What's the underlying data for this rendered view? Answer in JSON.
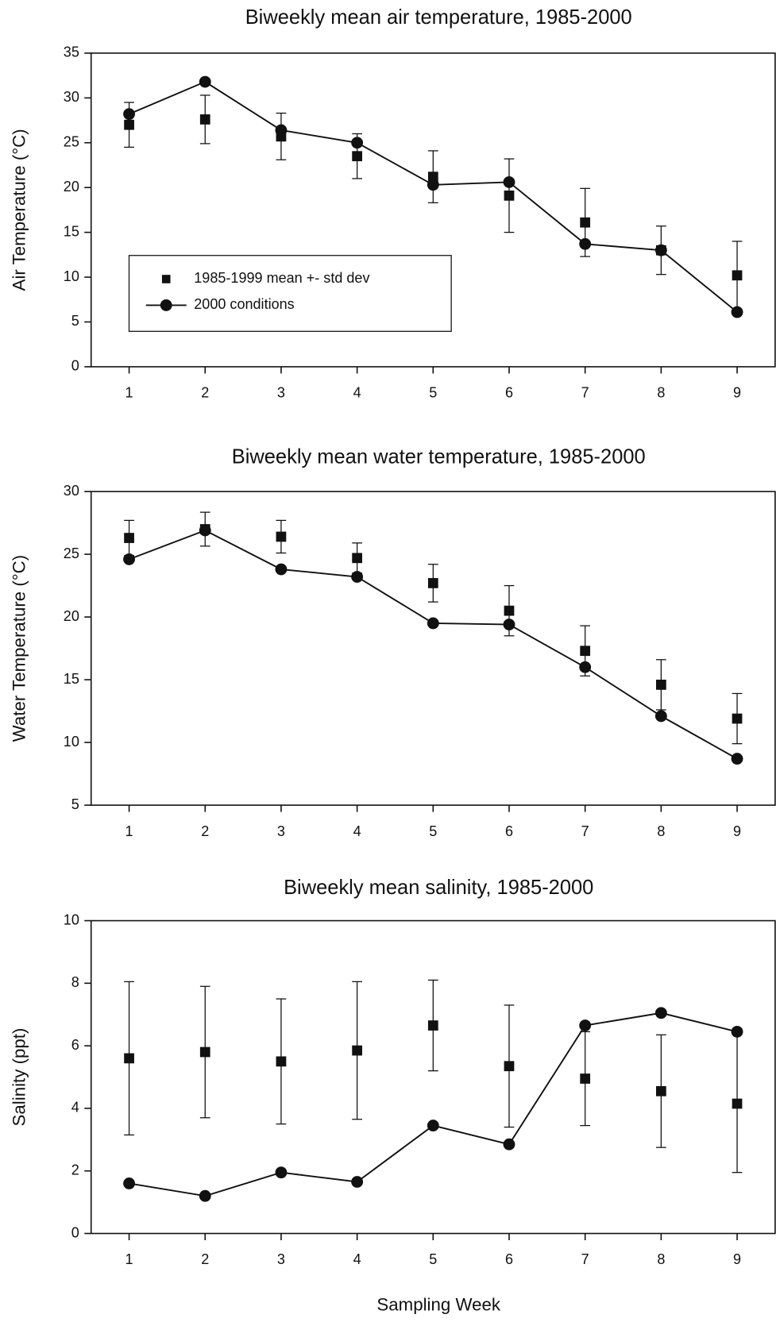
{
  "chart_data": [
    {
      "type": "line",
      "title": "Biweekly mean air temperature, 1985-2000",
      "ylabel": "Air Temperature (°C)",
      "x": [
        1,
        2,
        3,
        4,
        5,
        6,
        7,
        8,
        9
      ],
      "xlim": [
        0.5,
        9.5
      ],
      "xticks": [
        1,
        2,
        3,
        4,
        5,
        6,
        7,
        8,
        9
      ],
      "ylim": [
        0,
        35
      ],
      "yticks": [
        0,
        5,
        10,
        15,
        20,
        25,
        30,
        35
      ],
      "legend": "lower left",
      "series": [
        {
          "name": "1985-1999 mean +- std dev",
          "color": "#111111",
          "marker": "square",
          "line": false,
          "values": [
            27.0,
            27.6,
            25.7,
            23.5,
            21.2,
            19.1,
            16.1,
            13.0,
            10.2
          ],
          "errors": [
            2.5,
            2.7,
            2.6,
            2.5,
            2.9,
            4.1,
            3.8,
            2.7,
            3.8
          ]
        },
        {
          "name": "2000 conditions",
          "color": "#111111",
          "marker": "circle",
          "line": true,
          "values": [
            28.2,
            31.8,
            26.4,
            25.0,
            20.3,
            20.6,
            13.7,
            13.0,
            6.1
          ]
        }
      ]
    },
    {
      "type": "line",
      "title": "Biweekly mean water temperature, 1985-2000",
      "ylabel": "Water Temperature (°C)",
      "x": [
        1,
        2,
        3,
        4,
        5,
        6,
        7,
        8,
        9
      ],
      "xlim": [
        0.5,
        9.5
      ],
      "xticks": [
        1,
        2,
        3,
        4,
        5,
        6,
        7,
        8,
        9
      ],
      "ylim": [
        5,
        30
      ],
      "yticks": [
        5,
        10,
        15,
        20,
        25,
        30
      ],
      "series": [
        {
          "color": "#111111",
          "marker": "square",
          "line": false,
          "values": [
            26.3,
            27.0,
            26.4,
            24.7,
            22.7,
            20.5,
            17.3,
            14.6,
            11.9
          ],
          "errors": [
            1.4,
            1.35,
            1.3,
            1.2,
            1.5,
            2.0,
            2.0,
            2.0,
            2.0
          ]
        },
        {
          "color": "#111111",
          "marker": "circle",
          "line": true,
          "values": [
            24.6,
            26.9,
            23.8,
            23.2,
            19.5,
            19.4,
            16.0,
            12.1,
            8.7
          ]
        }
      ]
    },
    {
      "type": "line",
      "title": "Biweekly mean salinity, 1985-2000",
      "ylabel": "Salinity (ppt)",
      "xlabel": "Sampling Week",
      "x": [
        1,
        2,
        3,
        4,
        5,
        6,
        7,
        8,
        9
      ],
      "xlim": [
        0.5,
        9.5
      ],
      "xticks": [
        1,
        2,
        3,
        4,
        5,
        6,
        7,
        8,
        9
      ],
      "ylim": [
        0,
        10
      ],
      "yticks": [
        0,
        2,
        4,
        6,
        8,
        10
      ],
      "series": [
        {
          "color": "#111111",
          "marker": "square",
          "line": false,
          "values": [
            5.6,
            5.8,
            5.5,
            5.85,
            6.65,
            5.35,
            4.95,
            4.55,
            4.15
          ],
          "errors": [
            2.45,
            2.1,
            2.0,
            2.2,
            1.45,
            1.95,
            1.5,
            1.8,
            2.2
          ]
        },
        {
          "color": "#111111",
          "marker": "circle",
          "line": true,
          "values": [
            1.6,
            1.2,
            1.95,
            1.65,
            3.45,
            2.85,
            6.65,
            7.05,
            6.45
          ]
        }
      ]
    }
  ]
}
